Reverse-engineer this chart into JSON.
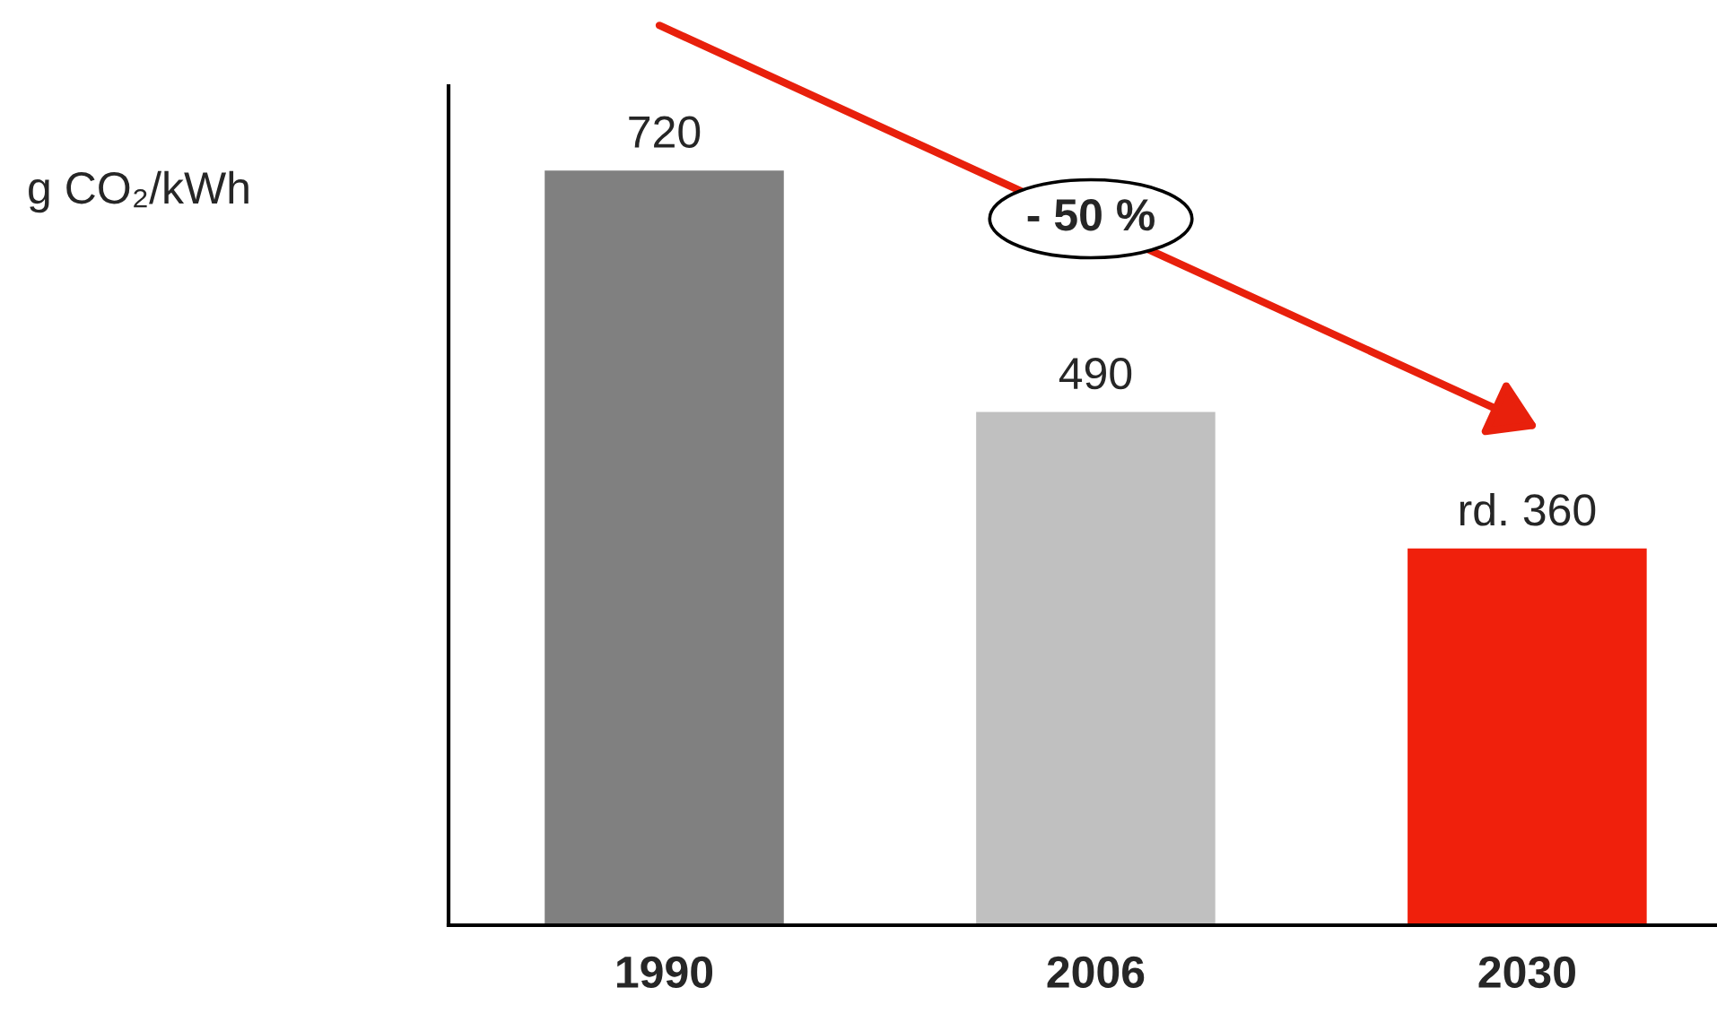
{
  "chart_data": {
    "type": "bar",
    "ylabel": "g CO₂/kWh",
    "categories": [
      "1990",
      "2006",
      "2030"
    ],
    "values": [
      720,
      490,
      360
    ],
    "colors": [
      "#808080",
      "#c0c0c0",
      "#f0200c"
    ],
    "value_labels": [
      "720",
      "490",
      "rd. 360"
    ],
    "annotations": [
      "- 50 %"
    ],
    "grid": false
  }
}
